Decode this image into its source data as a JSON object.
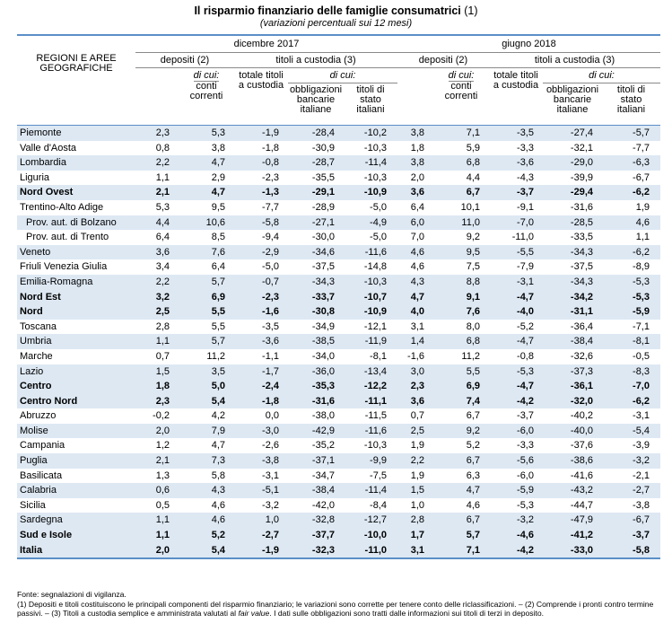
{
  "title": "Il risparmio finanziario delle famiglie consumatrici",
  "title_note": "(1)",
  "subtitle": "(variazioni percentuali sui 12 mesi)",
  "header": {
    "region_label_1": "REGIONI E AREE",
    "region_label_2": "GEOGRAFICHE",
    "period_1": "dicembre 2017",
    "period_2": "giugno 2018",
    "depositi": "depositi (2)",
    "titoli": "titoli a custodia (3)",
    "di_cui": "di cui:",
    "conti_1": "conti",
    "conti_2": "correnti",
    "totale_1": "totale titoli",
    "totale_2": "a custodia",
    "obbl_1": "obbligazioni",
    "obbl_2": "bancarie",
    "obbl_3": "italiane",
    "stato_1": "titoli di",
    "stato_2": "stato",
    "stato_3": "italiani"
  },
  "rows": [
    {
      "name": "Piemonte",
      "v": [
        "2,3",
        "5,3",
        "-1,9",
        "-28,4",
        "-10,2",
        "3,8",
        "7,1",
        "-3,5",
        "-27,4",
        "-5,7"
      ]
    },
    {
      "name": "Valle d'Aosta",
      "v": [
        "0,8",
        "3,8",
        "-1,8",
        "-30,9",
        "-10,3",
        "1,8",
        "5,9",
        "-3,3",
        "-32,1",
        "-7,7"
      ]
    },
    {
      "name": "Lombardia",
      "v": [
        "2,2",
        "4,7",
        "-0,8",
        "-28,7",
        "-11,4",
        "3,8",
        "6,8",
        "-3,6",
        "-29,0",
        "-6,3"
      ]
    },
    {
      "name": "Liguria",
      "v": [
        "1,1",
        "2,9",
        "-2,3",
        "-35,5",
        "-10,3",
        "2,0",
        "4,4",
        "-4,3",
        "-39,9",
        "-6,7"
      ]
    },
    {
      "name": "Nord Ovest",
      "v": [
        "2,1",
        "4,7",
        "-1,3",
        "-29,1",
        "-10,9",
        "3,6",
        "6,7",
        "-3,7",
        "-29,4",
        "-6,2"
      ]
    },
    {
      "name": "Trentino-Alto Adige",
      "v": [
        "5,3",
        "9,5",
        "-7,7",
        "-28,9",
        "-5,0",
        "6,4",
        "10,1",
        "-9,1",
        "-31,6",
        "1,9"
      ]
    },
    {
      "name": "Prov. aut. di Bolzano",
      "v": [
        "4,4",
        "10,6",
        "-5,8",
        "-27,1",
        "-4,9",
        "6,0",
        "11,0",
        "-7,0",
        "-28,5",
        "4,6"
      ]
    },
    {
      "name": "Prov. aut. di Trento",
      "v": [
        "6,4",
        "8,5",
        "-9,4",
        "-30,0",
        "-5,0",
        "7,0",
        "9,2",
        "-11,0",
        "-33,5",
        "1,1"
      ]
    },
    {
      "name": "Veneto",
      "v": [
        "3,6",
        "7,6",
        "-2,9",
        "-34,6",
        "-11,6",
        "4,6",
        "9,5",
        "-5,5",
        "-34,3",
        "-6,2"
      ]
    },
    {
      "name": "Friuli Venezia Giulia",
      "v": [
        "3,4",
        "6,4",
        "-5,0",
        "-37,5",
        "-14,8",
        "4,6",
        "7,5",
        "-7,9",
        "-37,5",
        "-8,9"
      ]
    },
    {
      "name": "Emilia-Romagna",
      "v": [
        "2,2",
        "5,7",
        "-0,7",
        "-34,3",
        "-10,3",
        "4,3",
        "8,8",
        "-3,1",
        "-34,3",
        "-5,3"
      ]
    },
    {
      "name": "Nord Est",
      "v": [
        "3,2",
        "6,9",
        "-2,3",
        "-33,7",
        "-10,7",
        "4,7",
        "9,1",
        "-4,7",
        "-34,2",
        "-5,3"
      ]
    },
    {
      "name": "Nord",
      "v": [
        "2,5",
        "5,5",
        "-1,6",
        "-30,8",
        "-10,9",
        "4,0",
        "7,6",
        "-4,0",
        "-31,1",
        "-5,9"
      ]
    },
    {
      "name": "Toscana",
      "v": [
        "2,8",
        "5,5",
        "-3,5",
        "-34,9",
        "-12,1",
        "3,1",
        "8,0",
        "-5,2",
        "-36,4",
        "-7,1"
      ]
    },
    {
      "name": "Umbria",
      "v": [
        "1,1",
        "5,7",
        "-3,6",
        "-38,5",
        "-11,9",
        "1,4",
        "6,8",
        "-4,7",
        "-38,4",
        "-8,1"
      ]
    },
    {
      "name": "Marche",
      "v": [
        "0,7",
        "11,2",
        "-1,1",
        "-34,0",
        "-8,1",
        "-1,6",
        "11,2",
        "-0,8",
        "-32,6",
        "-0,5"
      ]
    },
    {
      "name": "Lazio",
      "v": [
        "1,5",
        "3,5",
        "-1,7",
        "-36,0",
        "-13,4",
        "3,0",
        "5,5",
        "-5,3",
        "-37,3",
        "-8,3"
      ]
    },
    {
      "name": "Centro",
      "v": [
        "1,8",
        "5,0",
        "-2,4",
        "-35,3",
        "-12,2",
        "2,3",
        "6,9",
        "-4,7",
        "-36,1",
        "-7,0"
      ]
    },
    {
      "name": "Centro Nord",
      "v": [
        "2,3",
        "5,4",
        "-1,8",
        "-31,6",
        "-11,1",
        "3,6",
        "7,4",
        "-4,2",
        "-32,0",
        "-6,2"
      ]
    },
    {
      "name": "Abruzzo",
      "v": [
        "-0,2",
        "4,2",
        "0,0",
        "-38,0",
        "-11,5",
        "0,7",
        "6,7",
        "-3,7",
        "-40,2",
        "-3,1"
      ]
    },
    {
      "name": "Molise",
      "v": [
        "2,0",
        "7,9",
        "-3,0",
        "-42,9",
        "-11,6",
        "2,5",
        "9,2",
        "-6,0",
        "-40,0",
        "-5,4"
      ]
    },
    {
      "name": "Campania",
      "v": [
        "1,2",
        "4,7",
        "-2,6",
        "-35,2",
        "-10,3",
        "1,9",
        "5,2",
        "-3,3",
        "-37,6",
        "-3,9"
      ]
    },
    {
      "name": "Puglia",
      "v": [
        "2,1",
        "7,3",
        "-3,8",
        "-37,1",
        "-9,9",
        "2,2",
        "6,7",
        "-5,6",
        "-38,6",
        "-3,2"
      ]
    },
    {
      "name": "Basilicata",
      "v": [
        "1,3",
        "5,8",
        "-3,1",
        "-34,7",
        "-7,5",
        "1,9",
        "6,3",
        "-6,0",
        "-41,6",
        "-2,1"
      ]
    },
    {
      "name": "Calabria",
      "v": [
        "0,6",
        "4,3",
        "-5,1",
        "-38,4",
        "-11,4",
        "1,5",
        "4,7",
        "-5,9",
        "-43,2",
        "-2,7"
      ]
    },
    {
      "name": "Sicilia",
      "v": [
        "0,5",
        "4,6",
        "-3,2",
        "-42,0",
        "-8,4",
        "1,0",
        "4,6",
        "-5,3",
        "-44,7",
        "-3,8"
      ]
    },
    {
      "name": "Sardegna",
      "v": [
        "1,1",
        "4,6",
        "1,0",
        "-32,8",
        "-12,7",
        "2,8",
        "6,7",
        "-3,2",
        "-47,9",
        "-6,7"
      ]
    },
    {
      "name": "Sud e Isole",
      "v": [
        "1,1",
        "5,2",
        "-2,7",
        "-37,7",
        "-10,0",
        "1,7",
        "5,7",
        "-4,6",
        "-41,2",
        "-3,7"
      ]
    },
    {
      "name": "Italia",
      "v": [
        "2,0",
        "5,4",
        "-1,9",
        "-32,3",
        "-11,0",
        "3,1",
        "7,1",
        "-4,2",
        "-33,0",
        "-5,8"
      ]
    }
  ],
  "notes": {
    "fonte": "Fonte: segnalazioni di vigilanza.",
    "n1_a": "(1) Depositi e titoli costituiscono le principali componenti del risparmio finanziario; le variazioni sono corrette per tenere conto delle riclassificazioni. – (2) Comprende i pronti contro termine passivi. – (3) Titoli a custodia semplice e amministrata valutati al ",
    "n1_it": "fair value",
    "n1_b": ". I dati sulle obbligazioni sono tratti dalle informazioni sui titoli di terzi in deposito."
  }
}
